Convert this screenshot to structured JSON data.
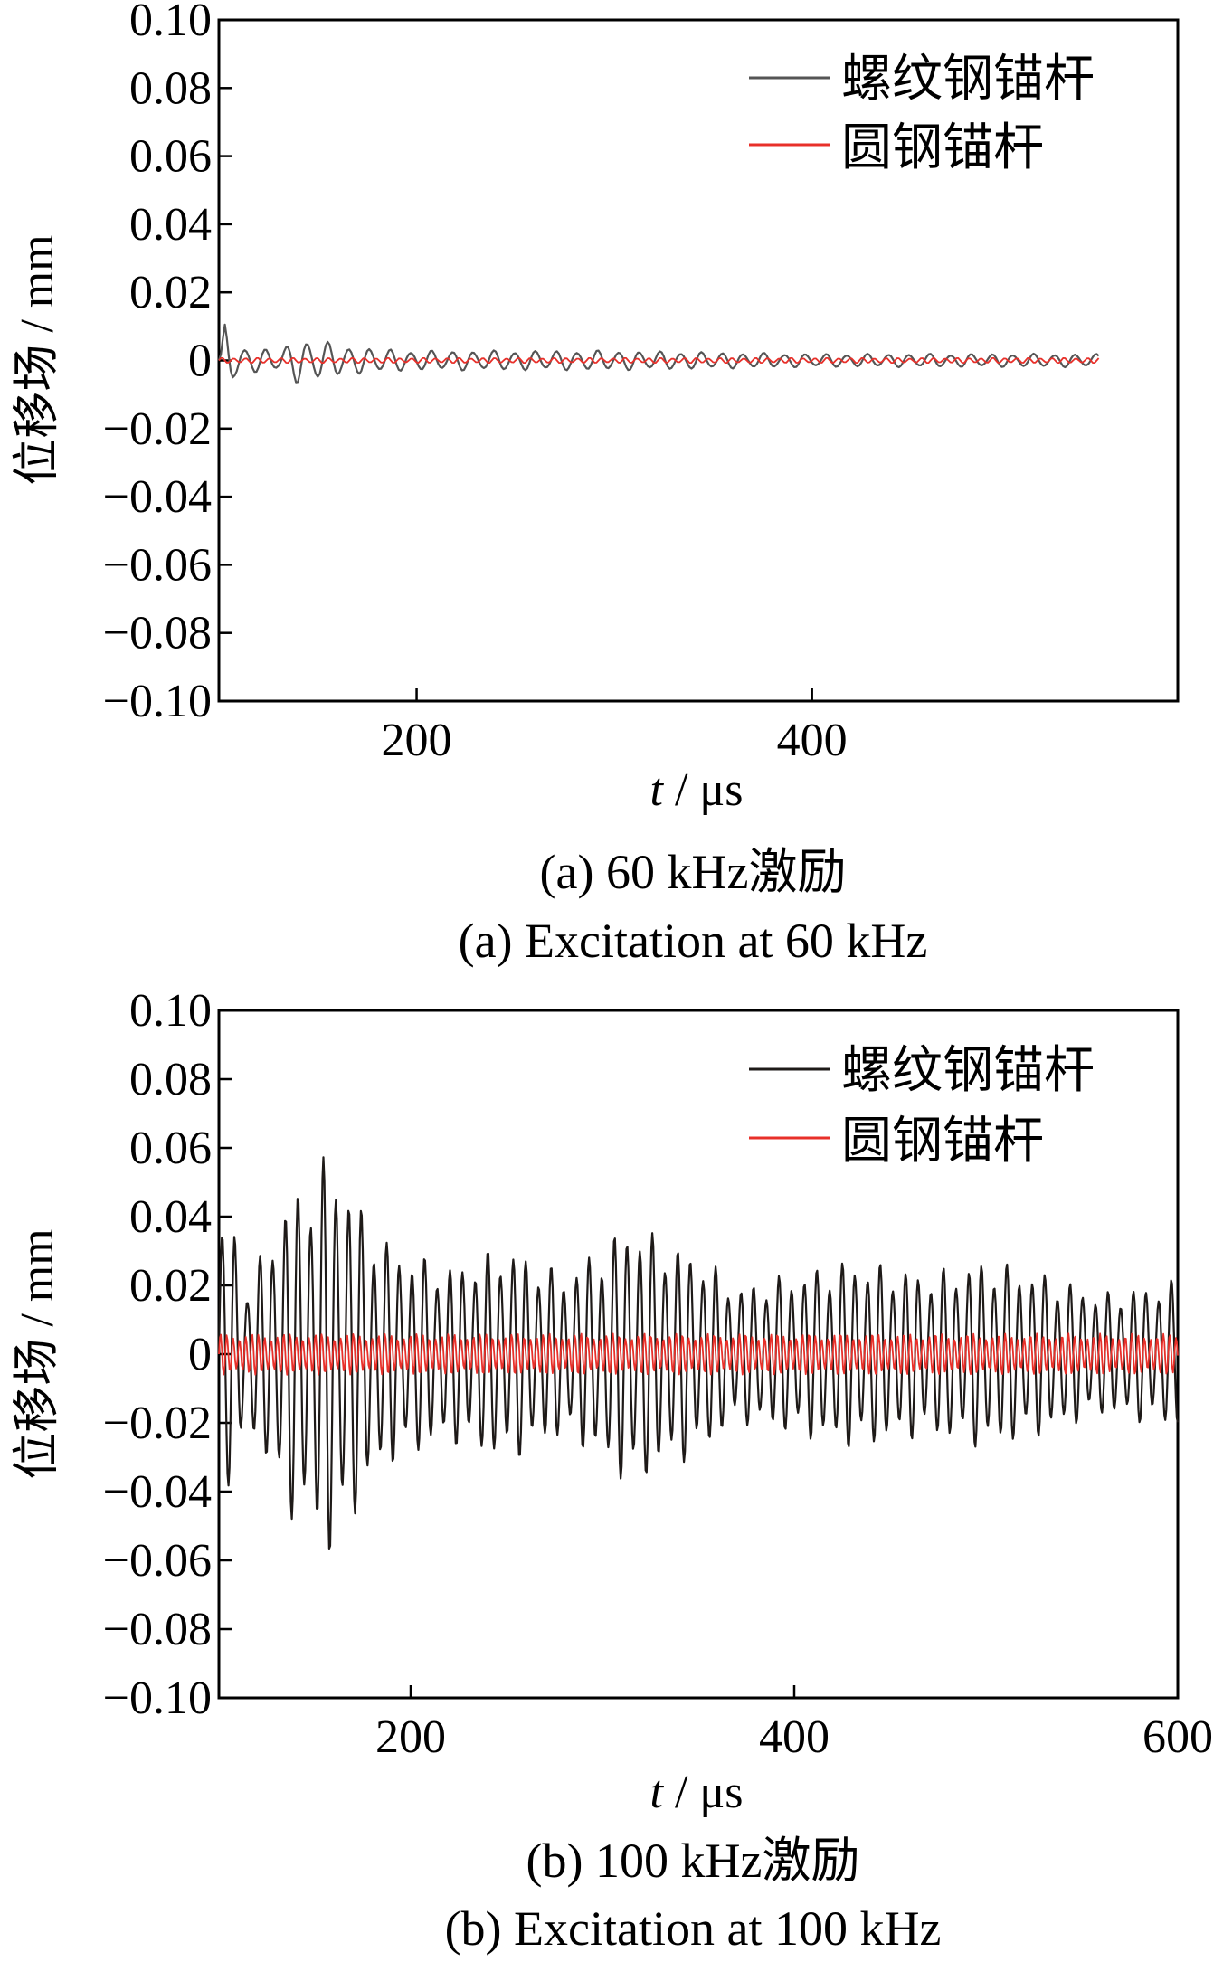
{
  "panels": [
    {
      "chart_data": {
        "type": "line",
        "title": "",
        "xlabel_var": "t",
        "xlabel_unit": " / μs",
        "ylabel": "位移场 / mm",
        "xlim": [
          100,
          585
        ],
        "ylim": [
          -0.1,
          0.1
        ],
        "xticks": [
          200,
          400
        ],
        "xtick_labels": [
          "200",
          "400"
        ],
        "yticks": [
          0.1,
          0.08,
          0.06,
          0.04,
          0.02,
          0,
          -0.02,
          -0.04,
          -0.06,
          -0.08,
          -0.1
        ],
        "ytick_labels": [
          "0.10",
          "0.08",
          "0.06",
          "0.04",
          "0.02",
          "0",
          "−0.02",
          "−0.04",
          "−0.06",
          "−0.08",
          "−0.10"
        ],
        "legend_position": "top-right",
        "grid": false,
        "series": [
          {
            "name": "螺纹钢锚杆",
            "color": "#555555",
            "x_start": 100,
            "x_end": 545,
            "dx": 1,
            "period": 10.5,
            "envelope": {
              "x": [
                100,
                103,
                108,
                115,
                130,
                140,
                160,
                170,
                200,
                300,
                400,
                545
              ],
              "amp": [
                0.0,
                0.011,
                0.005,
                0.004,
                0.003,
                0.007,
                0.005,
                0.004,
                0.003,
                0.003,
                0.002,
                0.002
              ]
            }
          },
          {
            "name": "圆钢锚杆",
            "color": "#e8302a",
            "x_start": 100,
            "x_end": 545,
            "dx": 1,
            "period": 6.0,
            "envelope": {
              "x": [
                100,
                545
              ],
              "amp": [
                0.0008,
                0.0008
              ]
            }
          }
        ]
      },
      "caption_cn": "(a)  60 kHz激励",
      "caption_en": "(a)  Excitation at 60 kHz"
    },
    {
      "chart_data": {
        "type": "line",
        "title": "",
        "xlabel_var": "t",
        "xlabel_unit": " / μs",
        "ylabel": "位移场 / mm",
        "xlim": [
          100,
          600
        ],
        "ylim": [
          -0.1,
          0.1
        ],
        "xticks": [
          200,
          400,
          600
        ],
        "xtick_labels": [
          "200",
          "400",
          "600"
        ],
        "yticks": [
          0.1,
          0.08,
          0.06,
          0.04,
          0.02,
          0,
          -0.02,
          -0.04,
          -0.06,
          -0.08,
          -0.1
        ],
        "ytick_labels": [
          "0.10",
          "0.08",
          "0.06",
          "0.04",
          "0.02",
          "0",
          "−0.02",
          "−0.04",
          "−0.06",
          "−0.08",
          "−0.10"
        ],
        "legend_position": "top-right",
        "grid": false,
        "series": [
          {
            "name": "螺纹钢锚杆",
            "color": "#1e1a18",
            "x_start": 100,
            "x_end": 600,
            "dx": 0.5,
            "period": 6.6,
            "envelope": {
              "x": [
                100,
                108,
                115,
                130,
                140,
                150,
                158,
                170,
                185,
                200,
                220,
                250,
                280,
                300,
                315,
                330,
                350,
                370,
                400,
                430,
                470,
                500,
                530,
                560,
                600
              ],
              "amp": [
                0.036,
                0.04,
                0.02,
                0.04,
                0.05,
                0.052,
                0.062,
                0.048,
                0.034,
                0.03,
                0.026,
                0.032,
                0.024,
                0.032,
                0.04,
                0.034,
                0.03,
                0.02,
                0.024,
                0.028,
                0.024,
                0.028,
                0.024,
                0.018,
                0.022
              ]
            }
          },
          {
            "name": "圆钢锚杆",
            "color": "#e8302a",
            "x_start": 100,
            "x_end": 600,
            "dx": 0.5,
            "period": 3.3,
            "envelope": {
              "x": [
                100,
                600
              ],
              "amp": [
                0.006,
                0.006
              ]
            }
          }
        ]
      },
      "caption_cn": "(b)  100 kHz激励",
      "caption_en": "(b)  Excitation at 100 kHz"
    }
  ]
}
